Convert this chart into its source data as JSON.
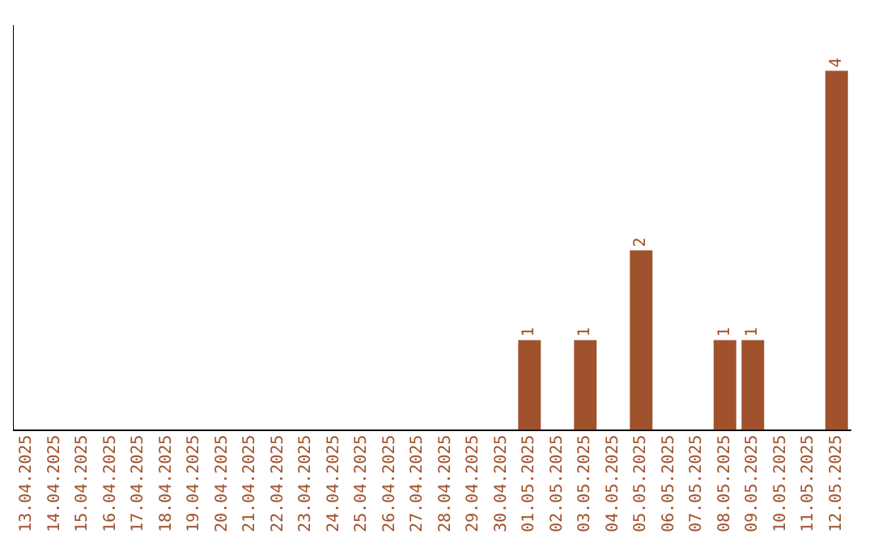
{
  "chart_data": {
    "type": "bar",
    "categories": [
      "13.04.2025",
      "14.04.2025",
      "15.04.2025",
      "16.04.2025",
      "17.04.2025",
      "18.04.2025",
      "19.04.2025",
      "20.04.2025",
      "21.04.2025",
      "22.04.2025",
      "23.04.2025",
      "24.04.2025",
      "25.04.2025",
      "26.04.2025",
      "27.04.2025",
      "28.04.2025",
      "29.04.2025",
      "30.04.2025",
      "01.05.2025",
      "02.05.2025",
      "03.05.2025",
      "04.05.2025",
      "05.05.2025",
      "06.05.2025",
      "07.05.2025",
      "08.05.2025",
      "09.05.2025",
      "10.05.2025",
      "11.05.2025",
      "12.05.2025"
    ],
    "values": [
      null,
      null,
      null,
      null,
      null,
      null,
      null,
      null,
      null,
      null,
      null,
      null,
      null,
      null,
      null,
      null,
      null,
      null,
      1,
      null,
      1,
      null,
      2,
      null,
      null,
      1,
      1,
      null,
      null,
      4
    ],
    "data_labels": true,
    "color": "#a0522d",
    "grid": false,
    "legend": false
  }
}
